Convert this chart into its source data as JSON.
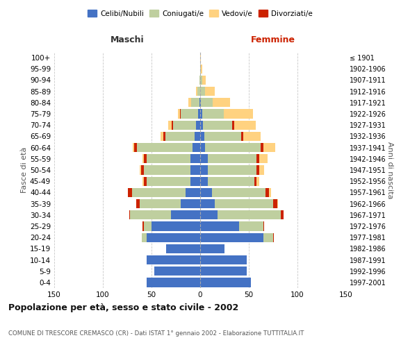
{
  "age_groups": [
    "0-4",
    "5-9",
    "10-14",
    "15-19",
    "20-24",
    "25-29",
    "30-34",
    "35-39",
    "40-44",
    "45-49",
    "50-54",
    "55-59",
    "60-64",
    "65-69",
    "70-74",
    "75-79",
    "80-84",
    "85-89",
    "90-94",
    "95-99",
    "100+"
  ],
  "birth_years": [
    "1997-2001",
    "1992-1996",
    "1987-1991",
    "1982-1986",
    "1977-1981",
    "1972-1976",
    "1967-1971",
    "1962-1966",
    "1957-1961",
    "1952-1956",
    "1947-1951",
    "1942-1946",
    "1937-1941",
    "1932-1936",
    "1927-1931",
    "1922-1926",
    "1917-1921",
    "1912-1916",
    "1907-1911",
    "1902-1906",
    "≤ 1901"
  ],
  "colors": {
    "celibi": "#4472C4",
    "coniugati": "#BFCF9F",
    "vedovi": "#FFD280",
    "divorziati": "#CC2200"
  },
  "maschi": {
    "celibi": [
      55,
      47,
      55,
      35,
      55,
      50,
      30,
      20,
      15,
      10,
      10,
      10,
      8,
      6,
      4,
      2,
      1,
      0,
      0,
      0,
      0
    ],
    "coniugati": [
      0,
      0,
      0,
      0,
      5,
      8,
      42,
      42,
      55,
      45,
      48,
      45,
      57,
      30,
      24,
      18,
      8,
      3,
      1,
      0,
      0
    ],
    "vedovi": [
      0,
      0,
      0,
      0,
      0,
      0,
      0,
      0,
      0,
      1,
      1,
      1,
      1,
      3,
      4,
      2,
      3,
      1,
      0,
      0,
      0
    ],
    "divorziati": [
      0,
      0,
      0,
      0,
      0,
      1,
      1,
      4,
      4,
      3,
      3,
      3,
      3,
      2,
      1,
      1,
      0,
      0,
      0,
      0,
      0
    ]
  },
  "femmine": {
    "celibi": [
      52,
      48,
      48,
      25,
      65,
      40,
      18,
      15,
      12,
      8,
      8,
      8,
      5,
      4,
      3,
      2,
      1,
      0,
      0,
      0,
      0
    ],
    "coniugati": [
      0,
      0,
      0,
      0,
      10,
      25,
      65,
      60,
      55,
      48,
      50,
      50,
      57,
      38,
      30,
      22,
      12,
      5,
      2,
      1,
      0
    ],
    "vedovi": [
      0,
      0,
      0,
      0,
      0,
      0,
      0,
      1,
      2,
      3,
      5,
      8,
      12,
      18,
      22,
      30,
      18,
      10,
      4,
      1,
      1
    ],
    "divorziati": [
      0,
      0,
      0,
      0,
      1,
      1,
      3,
      4,
      4,
      2,
      3,
      3,
      3,
      2,
      2,
      0,
      0,
      0,
      0,
      0,
      0
    ]
  },
  "title": "Popolazione per età, sesso e stato civile - 2002",
  "subtitle": "COMUNE DI TRESCORE CREMASCO (CR) - Dati ISTAT 1° gennaio 2002 - Elaborazione TUTTITALIA.IT",
  "xlabel_left": "Maschi",
  "xlabel_right": "Femmine",
  "ylabel_left": "Fasce di età",
  "ylabel_right": "Anni di nascita",
  "xlim": 150,
  "background_color": "#ffffff",
  "grid_color": "#c8c8c8",
  "legend_labels": [
    "Celibi/Nubili",
    "Coniugati/e",
    "Vedovi/e",
    "Divorziati/e"
  ]
}
